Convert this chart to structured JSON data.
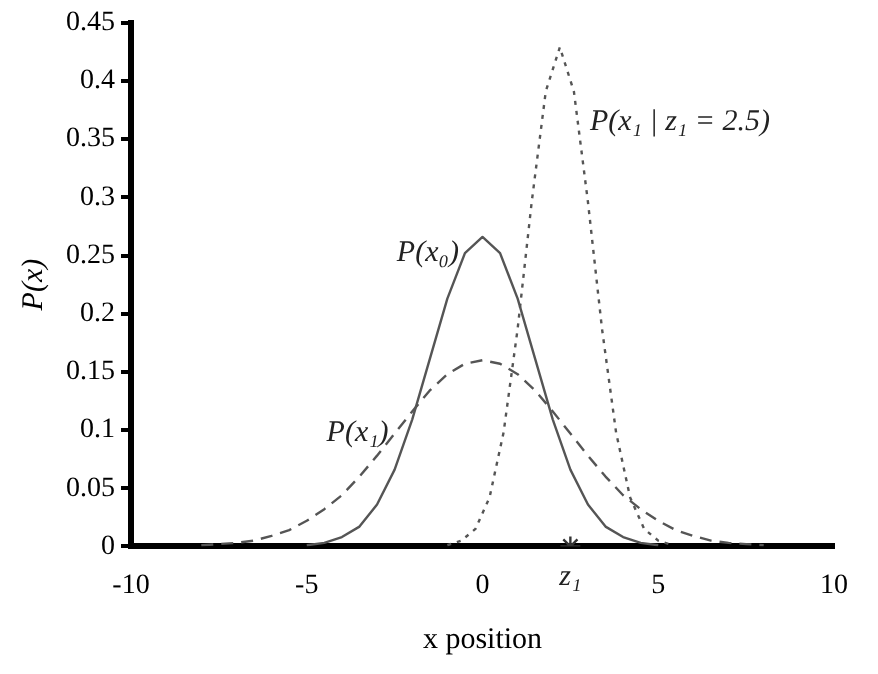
{
  "chart_data": {
    "type": "line",
    "xlabel": "x position",
    "ylabel": "P(x)",
    "xlim": [
      -10,
      10
    ],
    "xticks": [
      -10,
      -5,
      0,
      5,
      10
    ],
    "ylim": [
      0,
      0.45
    ],
    "yticks": [
      0,
      0.05,
      0.1,
      0.15,
      0.2,
      0.25,
      0.3,
      0.35,
      0.4,
      0.45
    ],
    "grid": false,
    "legend": false,
    "marker": "none",
    "series": [
      {
        "color": "#555555",
        "line_style": "solid",
        "x": [
          -5,
          -4.5,
          -4,
          -3.5,
          -3,
          -2.5,
          -2,
          -1.5,
          -1,
          -0.5,
          0,
          0.5,
          1,
          1.5,
          2,
          2.5,
          3,
          3.5,
          4,
          4.5,
          5
        ],
        "values": [
          0.001,
          0.003,
          0.008,
          0.017,
          0.036,
          0.066,
          0.109,
          0.161,
          0.213,
          0.252,
          0.266,
          0.252,
          0.213,
          0.161,
          0.109,
          0.066,
          0.036,
          0.017,
          0.008,
          0.003,
          0.001
        ]
      },
      {
        "color": "#555555",
        "line_style": "dashed",
        "x": [
          -8,
          -7.5,
          -7,
          -6.5,
          -6,
          -5.5,
          -5,
          -4.5,
          -4,
          -3.5,
          -3,
          -2.5,
          -2,
          -1.5,
          -1,
          -0.5,
          0,
          0.5,
          1,
          1.5,
          2,
          2.5,
          3,
          3.5,
          4,
          4.5,
          5,
          5.5,
          6,
          6.5,
          7,
          7.5,
          8
        ],
        "values": [
          0.001,
          0.002,
          0.003,
          0.005,
          0.009,
          0.014,
          0.022,
          0.032,
          0.044,
          0.06,
          0.078,
          0.097,
          0.116,
          0.134,
          0.148,
          0.157,
          0.16,
          0.157,
          0.148,
          0.134,
          0.116,
          0.097,
          0.078,
          0.06,
          0.044,
          0.032,
          0.022,
          0.014,
          0.009,
          0.005,
          0.003,
          0.002,
          0.001
        ]
      },
      {
        "color": "#555555",
        "line_style": "dotted",
        "x": [
          -1,
          -0.6,
          -0.2,
          0.2,
          0.6,
          1,
          1.4,
          1.8,
          2.2,
          2.6,
          3,
          3.4,
          3.8,
          4.2,
          4.6,
          5,
          5.4
        ],
        "values": [
          0.001,
          0.005,
          0.015,
          0.042,
          0.098,
          0.187,
          0.296,
          0.391,
          0.429,
          0.391,
          0.296,
          0.187,
          0.098,
          0.042,
          0.015,
          0.005,
          0.001
        ]
      },
      {
        "type": "scatter",
        "marker": "cross",
        "color": "#333333",
        "x": [
          2.5
        ],
        "values": [
          0
        ]
      }
    ],
    "annotations": [
      {
        "text": "P(x₀)",
        "x": -0.5,
        "y": 0.252
      },
      {
        "text": "P(x₁)",
        "x": -2.5,
        "y": 0.097
      },
      {
        "text": "P(x₁ | z₁ = 2.5)",
        "x": 2.6,
        "y": 0.391
      },
      {
        "text": "z₁",
        "x": 2.5,
        "y": 0
      }
    ]
  }
}
